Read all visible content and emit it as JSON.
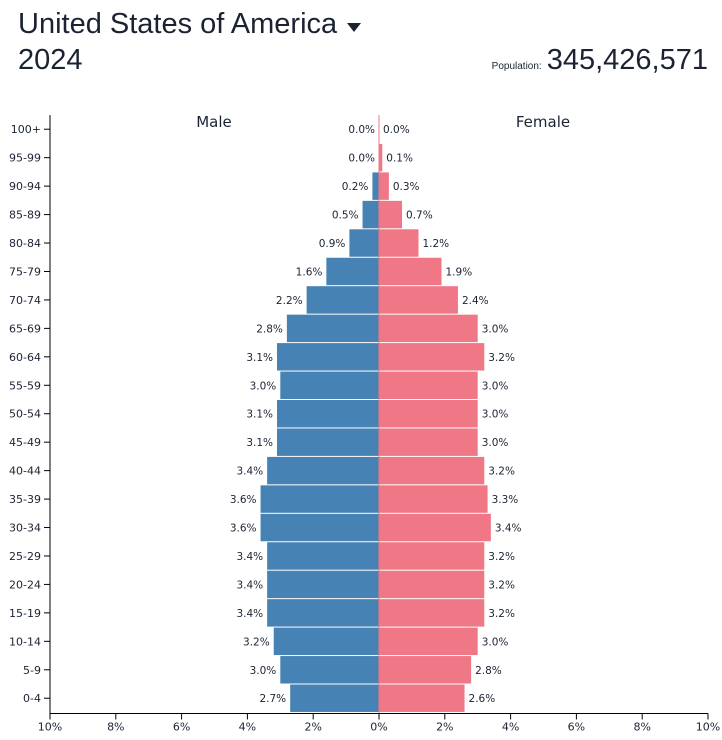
{
  "header": {
    "country": "United States of America",
    "year": "2024",
    "population_label": "Population:",
    "population_value": "345,426,571"
  },
  "colors": {
    "male": "#4682b4",
    "female": "#f07785",
    "text": "#1b2333",
    "axis": "#000000"
  },
  "icons": {
    "country_dropdown": "caret-down-icon"
  },
  "chart_data": {
    "type": "bar",
    "orientation": "horizontal",
    "layout": "population-pyramid",
    "categories": [
      "100+",
      "95-99",
      "90-94",
      "85-89",
      "80-84",
      "75-79",
      "70-74",
      "65-69",
      "60-64",
      "55-59",
      "50-54",
      "45-49",
      "40-44",
      "35-39",
      "30-34",
      "25-29",
      "20-24",
      "15-19",
      "10-14",
      "5-9",
      "0-4"
    ],
    "series": [
      {
        "name": "Male",
        "side": "left",
        "values": [
          0.0,
          0.0,
          0.2,
          0.5,
          0.9,
          1.6,
          2.2,
          2.8,
          3.1,
          3.0,
          3.1,
          3.1,
          3.4,
          3.6,
          3.6,
          3.4,
          3.4,
          3.4,
          3.2,
          3.0,
          2.7
        ],
        "labels": [
          "0.0%",
          "0.0%",
          "0.2%",
          "0.5%",
          "0.9%",
          "1.6%",
          "2.2%",
          "2.8%",
          "3.1%",
          "3.0%",
          "3.1%",
          "3.1%",
          "3.4%",
          "3.6%",
          "3.6%",
          "3.4%",
          "3.4%",
          "3.4%",
          "3.2%",
          "3.0%",
          "2.7%"
        ]
      },
      {
        "name": "Female",
        "side": "right",
        "values": [
          0.0,
          0.1,
          0.3,
          0.7,
          1.2,
          1.9,
          2.4,
          3.0,
          3.2,
          3.0,
          3.0,
          3.0,
          3.2,
          3.3,
          3.4,
          3.2,
          3.2,
          3.2,
          3.0,
          2.8,
          2.6
        ],
        "labels": [
          "0.0%",
          "0.1%",
          "0.3%",
          "0.7%",
          "1.2%",
          "1.9%",
          "2.4%",
          "3.0%",
          "3.2%",
          "3.0%",
          "3.0%",
          "3.0%",
          "3.2%",
          "3.3%",
          "3.4%",
          "3.2%",
          "3.2%",
          "3.2%",
          "3.0%",
          "2.8%",
          "2.6%"
        ]
      }
    ],
    "xlim": [
      -10,
      10
    ],
    "x_ticks": [
      -10,
      -8,
      -6,
      -4,
      -2,
      0,
      2,
      4,
      6,
      8,
      10
    ],
    "x_tick_labels": [
      "10%",
      "8%",
      "6%",
      "4%",
      "2%",
      "0%",
      "2%",
      "4%",
      "6%",
      "8%",
      "10%"
    ],
    "grid": false
  }
}
